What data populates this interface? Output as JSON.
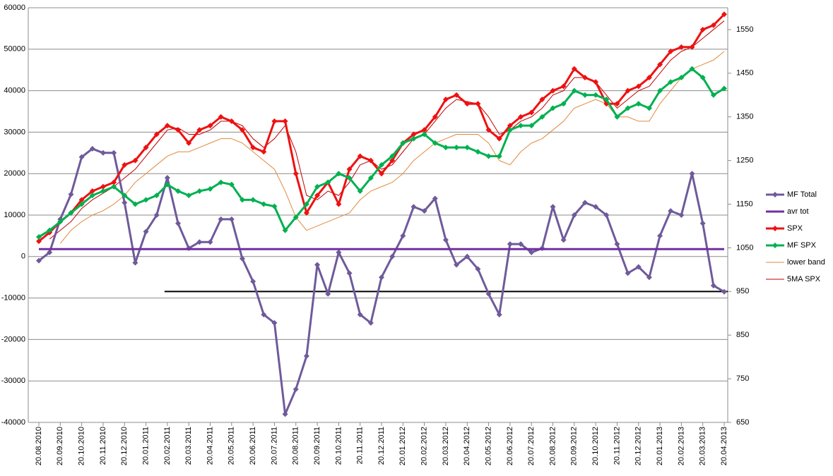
{
  "chart_data": {
    "type": "line",
    "categories": [
      "20.08.2010",
      null,
      "20.09.2010",
      null,
      "20.10.2010",
      null,
      "20.11.2010",
      null,
      "20.12.2010",
      null,
      "20.01.2011",
      null,
      "20.02.2011",
      null,
      "20.03.2011",
      null,
      "20.04.2011",
      null,
      "20.05.2011",
      null,
      "20.06.2011",
      null,
      "20.07.2011",
      null,
      "20.08.2011",
      null,
      "20.09.2011",
      null,
      "20.10.2011",
      null,
      "20.11.2011",
      null,
      "20.12.2011",
      null,
      "20.01.2012",
      null,
      "20.02.2012",
      null,
      "20.03.2012",
      null,
      "20.04.2012",
      null,
      "20.05.2012",
      null,
      "20.06.2012",
      null,
      "20.07.2012",
      null,
      "20.08.2012",
      null,
      "20.09.2012",
      null,
      "20.10.2012",
      null,
      "20.11.2012",
      null,
      "20.12.2012",
      null,
      "20.01.2013",
      null,
      "20.02.2013",
      null,
      "20.03.2013",
      null,
      "20.04.2013"
    ],
    "ylim": [
      -40000,
      60000
    ],
    "yticks": [
      -40000,
      -30000,
      -20000,
      -10000,
      0,
      10000,
      20000,
      30000,
      40000,
      50000,
      60000
    ],
    "y2lim": [
      650,
      1600
    ],
    "y2ticks": [
      650,
      750,
      850,
      950,
      1050,
      1150,
      1250,
      1350,
      1450,
      1550
    ],
    "grid": true,
    "legend": "right",
    "reference_line": {
      "value": 950,
      "axis": "y2",
      "start": "20.02.2011",
      "color": "#000000"
    },
    "series": [
      {
        "name": "MF Total",
        "color": "#6f5a9a",
        "marker": "diamond",
        "line_width": 3,
        "values": [
          -1000,
          1000,
          9000,
          15000,
          24000,
          26000,
          25000,
          25000,
          13000,
          -1500,
          6000,
          10000,
          19000,
          8000,
          2000,
          3500,
          3500,
          9000,
          9000,
          -500,
          -6000,
          -14000,
          -16000,
          -38000,
          -32000,
          -24000,
          -2000,
          -9000,
          1000,
          -4000,
          -14000,
          -16000,
          -5000,
          0,
          5000,
          12000,
          11000,
          14000,
          4000,
          -2000,
          0,
          -3000,
          -9000,
          -14000,
          3000,
          3000,
          1000,
          2000,
          12000,
          4000,
          10000,
          13000,
          12000,
          10000,
          3000,
          -4000,
          -2500,
          -5000,
          5000,
          11000,
          10000,
          20000,
          8000,
          -7000,
          -8500
        ]
      },
      {
        "name": "avr tot",
        "color": "#7030a0",
        "marker": "none",
        "line_width": 3,
        "values": [
          1800,
          1800,
          1800,
          1800,
          1800,
          1800,
          1800,
          1800,
          1800,
          1800,
          1800,
          1800,
          1800,
          1800,
          1800,
          1800,
          1800,
          1800,
          1800,
          1800,
          1800,
          1800,
          1800,
          1800,
          1800,
          1800,
          1800,
          1800,
          1800,
          1800,
          1800,
          1800,
          1800,
          1800,
          1800,
          1800,
          1800,
          1800,
          1800,
          1800,
          1800,
          1800,
          1800,
          1800,
          1800,
          1800,
          1800,
          1800,
          1800,
          1800,
          1800,
          1800,
          1800,
          1800,
          1800,
          1800,
          1800,
          1800,
          1800,
          1800,
          1800,
          1800,
          1800,
          1800,
          1800
        ]
      },
      {
        "name": "SPX",
        "color": "#ee1111",
        "marker": "diamond",
        "line_width": 3,
        "axis": "y2",
        "values": [
          1065,
          1085,
          1110,
          1130,
          1160,
          1180,
          1190,
          1200,
          1240,
          1250,
          1280,
          1310,
          1330,
          1320,
          1290,
          1320,
          1330,
          1350,
          1340,
          1320,
          1280,
          1270,
          1340,
          1340,
          1220,
          1130,
          1170,
          1200,
          1150,
          1230,
          1260,
          1250,
          1220,
          1250,
          1290,
          1310,
          1320,
          1350,
          1390,
          1400,
          1380,
          1380,
          1320,
          1300,
          1330,
          1350,
          1360,
          1390,
          1410,
          1420,
          1460,
          1440,
          1430,
          1380,
          1380,
          1410,
          1420,
          1440,
          1470,
          1500,
          1510,
          1510,
          1550,
          1560,
          1585
        ]
      },
      {
        "name": "MF SPX",
        "color": "#00b050",
        "marker": "diamond",
        "line_width": 3,
        "axis": "y2",
        "values": [
          1075,
          1090,
          1110,
          1130,
          1150,
          1170,
          1180,
          1190,
          1170,
          1150,
          1160,
          1170,
          1195,
          1180,
          1170,
          1180,
          1185,
          1200,
          1195,
          1160,
          1160,
          1150,
          1145,
          1090,
          1120,
          1150,
          1190,
          1200,
          1220,
          1210,
          1180,
          1210,
          1240,
          1260,
          1290,
          1300,
          1310,
          1290,
          1280,
          1280,
          1280,
          1270,
          1260,
          1260,
          1320,
          1330,
          1330,
          1350,
          1370,
          1380,
          1410,
          1400,
          1400,
          1390,
          1350,
          1370,
          1380,
          1370,
          1410,
          1430,
          1440,
          1460,
          1440,
          1400,
          1415
        ]
      },
      {
        "name": "lower band",
        "color": "#e08a3c",
        "marker": "none",
        "line_width": 1,
        "axis": "y2",
        "values": [
          null,
          null,
          1060,
          1090,
          1110,
          1125,
          1135,
          1150,
          1170,
          1200,
          1220,
          1240,
          1260,
          1270,
          1270,
          1280,
          1290,
          1300,
          1300,
          1290,
          1270,
          1250,
          1230,
          1180,
          1120,
          1090,
          1100,
          1110,
          1120,
          1130,
          1160,
          1180,
          1190,
          1200,
          1220,
          1250,
          1270,
          1290,
          1300,
          1310,
          1310,
          1310,
          1290,
          1250,
          1240,
          1270,
          1290,
          1300,
          1320,
          1340,
          1370,
          1380,
          1390,
          1380,
          1350,
          1350,
          1340,
          1340,
          1380,
          1410,
          1440,
          1460,
          1470,
          1480,
          1500
        ]
      },
      {
        "name": "5MA SPX",
        "color": "#c00000",
        "marker": "none",
        "line_width": 1,
        "axis": "y2",
        "values": [
          null,
          1070,
          1090,
          1110,
          1140,
          1160,
          1175,
          1190,
          1210,
          1230,
          1260,
          1290,
          1320,
          1325,
          1310,
          1310,
          1320,
          1340,
          1340,
          1330,
          1300,
          1280,
          1300,
          1330,
          1270,
          1170,
          1160,
          1180,
          1170,
          1200,
          1240,
          1250,
          1230,
          1240,
          1270,
          1300,
          1310,
          1340,
          1370,
          1390,
          1385,
          1380,
          1350,
          1310,
          1320,
          1340,
          1350,
          1370,
          1400,
          1410,
          1440,
          1440,
          1430,
          1400,
          1370,
          1390,
          1410,
          1420,
          1450,
          1480,
          1500,
          1510,
          1530,
          1550,
          1570
        ]
      }
    ]
  }
}
